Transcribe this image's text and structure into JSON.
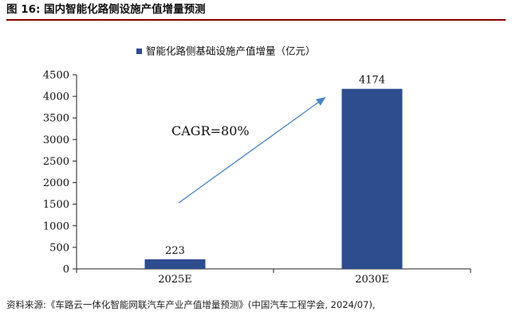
{
  "figure_caption": "图 16: 国内智能化路侧设施产值增量预测",
  "source_note": "资料来源:《车路云一体化智能网联汽车产业产值增量预测》(中国汽车工程学会, 2024/07),",
  "colors": {
    "bar": "#2e4d8f",
    "arrow": "#4a86c5",
    "caption_rule": "#8b0000"
  },
  "chart_data": {
    "type": "bar",
    "title": "",
    "xlabel": "",
    "ylabel": "",
    "categories": [
      "2025E",
      "2030E"
    ],
    "series": [
      {
        "name": "智能化路侧基础设施产值增量（亿元）",
        "values": [
          223,
          4174
        ]
      }
    ],
    "ylim": [
      0,
      4500
    ],
    "yticks": [
      0,
      500,
      1000,
      1500,
      2000,
      2500,
      3000,
      3500,
      4000,
      4500
    ],
    "data_labels": [
      "223",
      "4174"
    ],
    "legend_position": "top-center",
    "grid": false,
    "annotation": "CAGR=80%"
  }
}
